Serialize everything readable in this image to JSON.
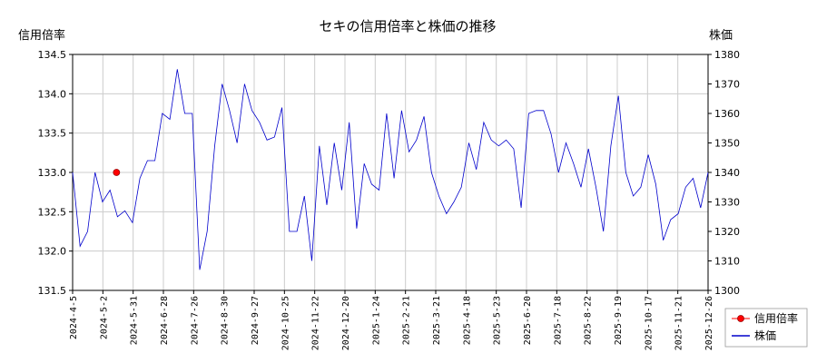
{
  "chart_data": {
    "type": "line",
    "title": "セキの信用倍率と株価の推移",
    "left_axis": {
      "label": "信用倍率",
      "ylim": [
        131.5,
        134.5
      ],
      "ticks": [
        "134.5",
        "134.0",
        "133.5",
        "133.0",
        "132.5",
        "132.0",
        "131.5"
      ]
    },
    "right_axis": {
      "label": "株価",
      "ylim": [
        1300,
        1380
      ],
      "ticks": [
        "1380",
        "1370",
        "1360",
        "1350",
        "1340",
        "1330",
        "1320",
        "1310",
        "1300"
      ]
    },
    "x_ticks": [
      "2024-4-5",
      "2024-5-2",
      "2024-5-31",
      "2024-6-28",
      "2024-7-26",
      "2024-8-30",
      "2024-9-27",
      "2024-10-25",
      "2024-11-22",
      "2024-12-20",
      "2025-1-24",
      "2025-2-21",
      "2025-3-21",
      "2025-4-18",
      "2025-5-23",
      "2025-6-20",
      "2025-7-18",
      "2025-8-22",
      "2025-9-19",
      "2025-10-17",
      "2025-11-21",
      "2025-12-26"
    ],
    "grid": true,
    "legend_position": "bottom-right",
    "series": [
      {
        "name": "信用倍率",
        "axis": "left",
        "color": "#ff0000",
        "marker": "circle",
        "points": [
          {
            "x": "2024-5-2",
            "y": 133.0
          }
        ]
      },
      {
        "name": "株価",
        "axis": "right",
        "color": "#0000cc",
        "values": [
          1340,
          1315,
          1320,
          1340,
          1330,
          1334,
          1325,
          1327,
          1323,
          1338,
          1344,
          1344,
          1360,
          1358,
          1375,
          1360,
          1360,
          1307,
          1320,
          1349,
          1370,
          1361,
          1350,
          1370,
          1361,
          1357,
          1351,
          1352,
          1362,
          1320,
          1320,
          1332,
          1310,
          1349,
          1329,
          1350,
          1334,
          1357,
          1321,
          1343,
          1336,
          1334,
          1360,
          1338,
          1361,
          1347,
          1351,
          1359,
          1340,
          1332,
          1326,
          1330,
          1335,
          1350,
          1341,
          1357,
          1351,
          1349,
          1351,
          1348,
          1328,
          1360,
          1361,
          1361,
          1353,
          1340,
          1350,
          1343,
          1335,
          1348,
          1335,
          1320,
          1349,
          1366,
          1340,
          1332,
          1335,
          1346,
          1336,
          1317,
          1324,
          1326,
          1335,
          1338,
          1328,
          1340
        ]
      }
    ]
  }
}
